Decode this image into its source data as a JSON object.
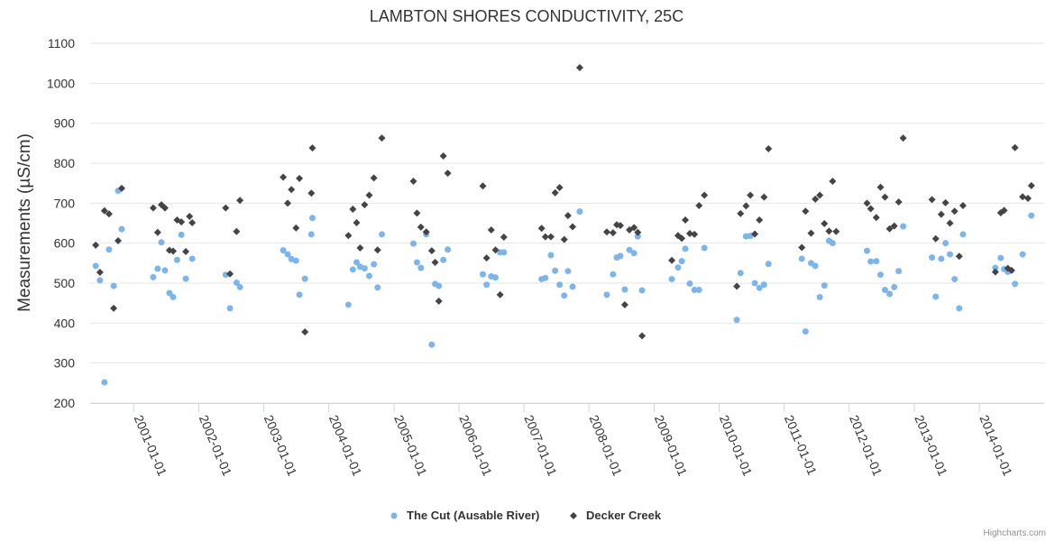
{
  "chart_data": {
    "type": "scatter",
    "title": "LAMBTON SHORES CONDUCTIVITY, 25C",
    "ylabel": "Measurements (µS/cm)",
    "xlabel": "",
    "ylim": [
      200,
      1100
    ],
    "yticks": [
      "200",
      "300",
      "400",
      "500",
      "600",
      "700",
      "800",
      "900",
      "1000",
      "1100"
    ],
    "xlim": [
      "2000-05-01",
      "2014-12-31"
    ],
    "xticks": [
      "2001-01-01",
      "2002-01-01",
      "2003-01-01",
      "2004-01-01",
      "2005-01-01",
      "2006-01-01",
      "2007-01-01",
      "2008-01-01",
      "2009-01-01",
      "2010-01-01",
      "2011-01-01",
      "2012-01-01",
      "2013-01-01",
      "2014-01-01"
    ],
    "grid": true,
    "legend": "bottom-center",
    "credits": "Highcharts.com",
    "series": [
      {
        "name": "The Cut (Ausable River)",
        "color": "#7cb5ec",
        "marker": "circle",
        "points": [
          [
            "2000-06-01",
            543
          ],
          [
            "2000-06-25",
            507
          ],
          [
            "2000-07-20",
            252
          ],
          [
            "2000-08-15",
            584
          ],
          [
            "2000-09-10",
            493
          ],
          [
            "2000-10-05",
            731
          ],
          [
            "2000-10-25",
            635
          ],
          [
            "2001-04-20",
            515
          ],
          [
            "2001-05-15",
            536
          ],
          [
            "2001-06-05",
            602
          ],
          [
            "2001-06-25",
            532
          ],
          [
            "2001-07-20",
            475
          ],
          [
            "2001-08-10",
            465
          ],
          [
            "2001-09-01",
            558
          ],
          [
            "2001-09-25",
            621
          ],
          [
            "2001-10-20",
            511
          ],
          [
            "2001-11-25",
            561
          ],
          [
            "2002-06-01",
            521
          ],
          [
            "2002-06-25",
            437
          ],
          [
            "2002-08-01",
            501
          ],
          [
            "2002-08-20",
            490
          ],
          [
            "2003-04-20",
            582
          ],
          [
            "2003-05-15",
            572
          ],
          [
            "2003-06-05",
            560
          ],
          [
            "2003-07-01",
            556
          ],
          [
            "2003-07-20",
            471
          ],
          [
            "2003-08-20",
            511
          ],
          [
            "2003-09-25",
            622
          ],
          [
            "2003-10-01",
            663
          ],
          [
            "2004-04-20",
            446
          ],
          [
            "2004-05-15",
            534
          ],
          [
            "2004-06-05",
            552
          ],
          [
            "2004-06-25",
            541
          ],
          [
            "2004-07-20",
            537
          ],
          [
            "2004-08-15",
            518
          ],
          [
            "2004-09-10",
            547
          ],
          [
            "2004-10-01",
            489
          ],
          [
            "2004-10-25",
            622
          ],
          [
            "2005-04-20",
            599
          ],
          [
            "2005-05-10",
            552
          ],
          [
            "2005-06-01",
            538
          ],
          [
            "2005-07-01",
            622
          ],
          [
            "2005-08-01",
            346
          ],
          [
            "2005-08-20",
            498
          ],
          [
            "2005-09-10",
            493
          ],
          [
            "2005-10-05",
            558
          ],
          [
            "2005-10-30",
            584
          ],
          [
            "2006-05-15",
            522
          ],
          [
            "2006-06-05",
            496
          ],
          [
            "2006-07-01",
            517
          ],
          [
            "2006-07-25",
            514
          ],
          [
            "2006-08-20",
            577
          ],
          [
            "2006-09-10",
            577
          ],
          [
            "2007-04-10",
            510
          ],
          [
            "2007-05-01",
            513
          ],
          [
            "2007-06-01",
            570
          ],
          [
            "2007-06-25",
            531
          ],
          [
            "2007-07-20",
            496
          ],
          [
            "2007-08-15",
            469
          ],
          [
            "2007-09-05",
            530
          ],
          [
            "2007-10-01",
            491
          ],
          [
            "2007-11-10",
            679
          ],
          [
            "2008-04-10",
            471
          ],
          [
            "2008-05-15",
            522
          ],
          [
            "2008-06-05",
            564
          ],
          [
            "2008-06-25",
            568
          ],
          [
            "2008-07-20",
            484
          ],
          [
            "2008-08-15",
            583
          ],
          [
            "2008-09-10",
            575
          ],
          [
            "2008-10-01",
            617
          ],
          [
            "2008-10-25",
            482
          ],
          [
            "2009-04-10",
            510
          ],
          [
            "2009-05-15",
            539
          ],
          [
            "2009-06-05",
            555
          ],
          [
            "2009-06-25",
            586
          ],
          [
            "2009-07-20",
            499
          ],
          [
            "2009-08-15",
            483
          ],
          [
            "2009-09-10",
            483
          ],
          [
            "2009-10-10",
            588
          ],
          [
            "2010-04-10",
            408
          ],
          [
            "2010-05-01",
            525
          ],
          [
            "2010-06-01",
            617
          ],
          [
            "2010-06-25",
            618
          ],
          [
            "2010-07-20",
            500
          ],
          [
            "2010-08-15",
            488
          ],
          [
            "2010-09-10",
            496
          ],
          [
            "2010-10-05",
            548
          ],
          [
            "2011-04-10",
            561
          ],
          [
            "2011-05-01",
            379
          ],
          [
            "2011-06-01",
            550
          ],
          [
            "2011-06-25",
            543
          ],
          [
            "2011-07-20",
            465
          ],
          [
            "2011-08-15",
            494
          ],
          [
            "2011-09-10",
            606
          ],
          [
            "2011-09-30",
            600
          ],
          [
            "2012-04-10",
            581
          ],
          [
            "2012-05-01",
            554
          ],
          [
            "2012-06-01",
            555
          ],
          [
            "2012-06-25",
            521
          ],
          [
            "2012-07-20",
            483
          ],
          [
            "2012-08-15",
            473
          ],
          [
            "2012-09-10",
            490
          ],
          [
            "2012-10-05",
            530
          ],
          [
            "2012-10-30",
            642
          ],
          [
            "2013-04-10",
            564
          ],
          [
            "2013-05-01",
            466
          ],
          [
            "2013-06-01",
            561
          ],
          [
            "2013-06-25",
            600
          ],
          [
            "2013-07-20",
            572
          ],
          [
            "2013-08-15",
            510
          ],
          [
            "2013-09-10",
            437
          ],
          [
            "2013-10-01",
            622
          ],
          [
            "2014-04-01",
            538
          ],
          [
            "2014-05-01",
            563
          ],
          [
            "2014-05-20",
            535
          ],
          [
            "2014-06-10",
            528
          ],
          [
            "2014-07-20",
            498
          ],
          [
            "2014-09-01",
            572
          ],
          [
            "2014-10-20",
            669
          ]
        ]
      },
      {
        "name": "Decker Creek",
        "color": "#434348",
        "marker": "diamond",
        "points": [
          [
            "2000-06-01",
            595
          ],
          [
            "2000-06-25",
            527
          ],
          [
            "2000-07-20",
            681
          ],
          [
            "2000-08-15",
            673
          ],
          [
            "2000-09-10",
            437
          ],
          [
            "2000-10-05",
            606
          ],
          [
            "2000-10-25",
            737
          ],
          [
            "2001-04-20",
            688
          ],
          [
            "2001-05-15",
            627
          ],
          [
            "2001-06-05",
            696
          ],
          [
            "2001-06-25",
            688
          ],
          [
            "2001-07-20",
            582
          ],
          [
            "2001-08-10",
            580
          ],
          [
            "2001-09-01",
            658
          ],
          [
            "2001-09-25",
            653
          ],
          [
            "2001-10-20",
            579
          ],
          [
            "2001-11-10",
            667
          ],
          [
            "2001-11-25",
            651
          ],
          [
            "2002-06-01",
            688
          ],
          [
            "2002-06-25",
            523
          ],
          [
            "2002-08-01",
            629
          ],
          [
            "2002-08-20",
            707
          ],
          [
            "2003-04-20",
            765
          ],
          [
            "2003-05-15",
            700
          ],
          [
            "2003-06-05",
            734
          ],
          [
            "2003-07-01",
            638
          ],
          [
            "2003-07-20",
            762
          ],
          [
            "2003-08-20",
            378
          ],
          [
            "2003-09-25",
            725
          ],
          [
            "2003-10-01",
            838
          ],
          [
            "2004-04-20",
            619
          ],
          [
            "2004-05-15",
            685
          ],
          [
            "2004-06-05",
            651
          ],
          [
            "2004-06-25",
            588
          ],
          [
            "2004-07-20",
            696
          ],
          [
            "2004-08-15",
            720
          ],
          [
            "2004-09-10",
            763
          ],
          [
            "2004-10-01",
            583
          ],
          [
            "2004-10-25",
            863
          ],
          [
            "2005-04-20",
            755
          ],
          [
            "2005-05-10",
            675
          ],
          [
            "2005-06-01",
            640
          ],
          [
            "2005-07-01",
            628
          ],
          [
            "2005-08-01",
            581
          ],
          [
            "2005-08-20",
            552
          ],
          [
            "2005-09-10",
            455
          ],
          [
            "2005-10-05",
            818
          ],
          [
            "2005-10-30",
            775
          ],
          [
            "2006-05-15",
            743
          ],
          [
            "2006-06-05",
            563
          ],
          [
            "2006-07-01",
            633
          ],
          [
            "2006-07-25",
            583
          ],
          [
            "2006-08-20",
            471
          ],
          [
            "2006-09-10",
            615
          ],
          [
            "2007-04-10",
            637
          ],
          [
            "2007-05-01",
            616
          ],
          [
            "2007-06-01",
            616
          ],
          [
            "2007-06-25",
            726
          ],
          [
            "2007-07-20",
            739
          ],
          [
            "2007-08-15",
            609
          ],
          [
            "2007-09-05",
            669
          ],
          [
            "2007-10-01",
            641
          ],
          [
            "2007-11-10",
            1039
          ],
          [
            "2008-04-10",
            628
          ],
          [
            "2008-05-15",
            626
          ],
          [
            "2008-06-05",
            646
          ],
          [
            "2008-06-25",
            644
          ],
          [
            "2008-07-20",
            446
          ],
          [
            "2008-08-15",
            633
          ],
          [
            "2008-09-10",
            639
          ],
          [
            "2008-10-01",
            627
          ],
          [
            "2008-10-25",
            368
          ],
          [
            "2009-04-10",
            557
          ],
          [
            "2009-05-15",
            619
          ],
          [
            "2009-06-05",
            612
          ],
          [
            "2009-06-25",
            658
          ],
          [
            "2009-07-20",
            624
          ],
          [
            "2009-08-15",
            622
          ],
          [
            "2009-09-10",
            694
          ],
          [
            "2009-10-10",
            720
          ],
          [
            "2010-04-10",
            492
          ],
          [
            "2010-05-01",
            674
          ],
          [
            "2010-06-01",
            693
          ],
          [
            "2010-06-25",
            720
          ],
          [
            "2010-07-20",
            623
          ],
          [
            "2010-08-15",
            658
          ],
          [
            "2010-09-10",
            715
          ],
          [
            "2010-10-05",
            836
          ],
          [
            "2011-04-10",
            589
          ],
          [
            "2011-05-01",
            680
          ],
          [
            "2011-06-01",
            625
          ],
          [
            "2011-06-25",
            710
          ],
          [
            "2011-07-20",
            720
          ],
          [
            "2011-08-15",
            649
          ],
          [
            "2011-09-10",
            630
          ],
          [
            "2011-09-30",
            755
          ],
          [
            "2011-10-20",
            629
          ],
          [
            "2012-04-10",
            700
          ],
          [
            "2012-05-01",
            686
          ],
          [
            "2012-06-01",
            664
          ],
          [
            "2012-06-25",
            740
          ],
          [
            "2012-07-20",
            715
          ],
          [
            "2012-08-15",
            636
          ],
          [
            "2012-09-10",
            643
          ],
          [
            "2012-10-05",
            703
          ],
          [
            "2012-10-30",
            863
          ],
          [
            "2013-04-10",
            709
          ],
          [
            "2013-05-01",
            611
          ],
          [
            "2013-06-01",
            672
          ],
          [
            "2013-06-25",
            701
          ],
          [
            "2013-07-20",
            650
          ],
          [
            "2013-08-15",
            680
          ],
          [
            "2013-09-10",
            567
          ],
          [
            "2013-10-01",
            694
          ],
          [
            "2014-04-01",
            528
          ],
          [
            "2014-05-01",
            676
          ],
          [
            "2014-05-20",
            682
          ],
          [
            "2014-06-10",
            537
          ],
          [
            "2014-07-01",
            532
          ],
          [
            "2014-07-20",
            839
          ],
          [
            "2014-09-01",
            716
          ],
          [
            "2014-10-01",
            712
          ],
          [
            "2014-10-20",
            744
          ]
        ]
      }
    ]
  }
}
